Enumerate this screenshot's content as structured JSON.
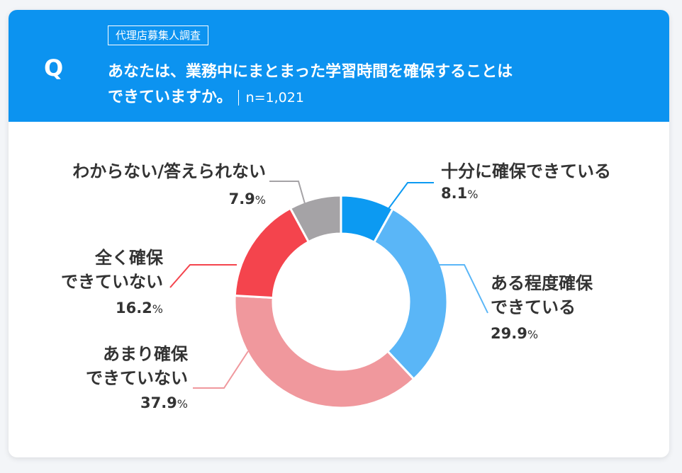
{
  "header": {
    "q_mark": "Q",
    "survey_tag": "代理店募集人調査",
    "question_line1": "あなたは、業務中にまとまった学習時間を確保することは",
    "question_line2": "できていますか。",
    "sample": "n=1,021"
  },
  "chart_data": {
    "type": "pie",
    "donut": true,
    "categories": [
      "十分に確保できている",
      "ある程度確保できている",
      "あまり確保できていない",
      "全く確保できていない",
      "わからない/答えられない"
    ],
    "values": [
      8.1,
      29.9,
      37.9,
      16.2,
      7.9
    ],
    "value_labels": [
      "8.1%",
      "29.9%",
      "37.9%",
      "16.2%",
      "7.9%"
    ],
    "label_lines": [
      [
        "十分に確保できている"
      ],
      [
        "ある程度確保",
        "できている"
      ],
      [
        "あまり確保",
        "できていない"
      ],
      [
        "全く確保",
        "できていない"
      ],
      [
        "わからない/答えられない"
      ]
    ],
    "colors": [
      "#0c9af2",
      "#5ab6f7",
      "#f0989d",
      "#f4444d",
      "#a5a3a6"
    ],
    "start": "12 o'clock",
    "direction": "clockwise"
  }
}
